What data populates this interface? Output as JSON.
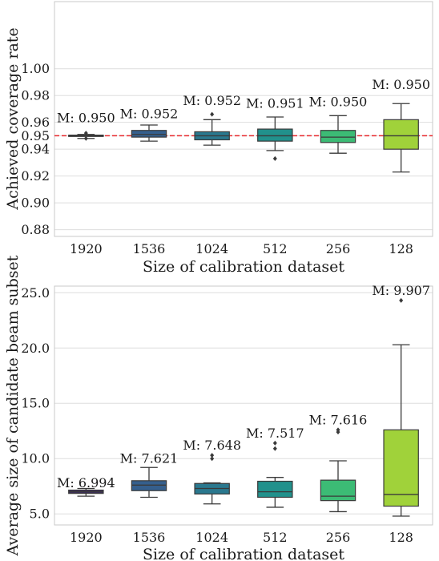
{
  "chart_data": [
    {
      "type": "box",
      "xlabel": "Size of calibration dataset",
      "ylabel": "Achieved coverage rate",
      "ylim": [
        0.875,
        1.05
      ],
      "ytick_labels": [
        "0.88",
        "0.90",
        "0.92",
        "0.94",
        "0.95",
        "0.96",
        "0.98",
        "1.00"
      ],
      "ytick_values": [
        0.88,
        0.9,
        0.92,
        0.94,
        0.95,
        0.96,
        0.98,
        1.0
      ],
      "reference_line": {
        "value": 0.95,
        "color": "#e8262b",
        "style": "dashed"
      },
      "grid": true,
      "categories": [
        "1920",
        "1536",
        "1024",
        "512",
        "256",
        "128"
      ],
      "colors": [
        "#3b2a5c",
        "#355f8d",
        "#2a788e",
        "#21918c",
        "#3cbb75",
        "#a0d23a"
      ],
      "boxes": [
        {
          "whislo": 0.948,
          "q1": 0.9495,
          "med": 0.95,
          "q3": 0.9505,
          "whishi": 0.951,
          "fliers": [
            0.952,
            0.948
          ]
        },
        {
          "whislo": 0.946,
          "q1": 0.949,
          "med": 0.951,
          "q3": 0.954,
          "whishi": 0.958,
          "fliers": []
        },
        {
          "whislo": 0.943,
          "q1": 0.947,
          "med": 0.95,
          "q3": 0.953,
          "whishi": 0.962,
          "fliers": [
            0.966
          ]
        },
        {
          "whislo": 0.939,
          "q1": 0.946,
          "med": 0.95,
          "q3": 0.955,
          "whishi": 0.964,
          "fliers": [
            0.933
          ]
        },
        {
          "whislo": 0.937,
          "q1": 0.945,
          "med": 0.949,
          "q3": 0.954,
          "whishi": 0.965,
          "fliers": []
        },
        {
          "whislo": 0.923,
          "q1": 0.94,
          "med": 0.95,
          "q3": 0.962,
          "whishi": 0.974,
          "fliers": []
        }
      ],
      "annotations": [
        "M: 0.950",
        "M: 0.952",
        "M: 0.952",
        "M: 0.951",
        "M: 0.950",
        "M: 0.950"
      ],
      "annotation_values": [
        0.96,
        0.963,
        0.973,
        0.971,
        0.972,
        0.985
      ]
    },
    {
      "type": "box",
      "xlabel": "Size of calibration dataset",
      "ylabel": "Average size of candidate beam subset",
      "ylim": [
        4.0,
        25.6
      ],
      "ytick_labels": [
        "5.0",
        "10.0",
        "15.0",
        "20.0",
        "25.0"
      ],
      "ytick_values": [
        5,
        10,
        15,
        20,
        25
      ],
      "grid": true,
      "categories": [
        "1920",
        "1536",
        "1024",
        "512",
        "256",
        "128"
      ],
      "colors": [
        "#3b2a5c",
        "#355f8d",
        "#2a788e",
        "#21918c",
        "#3cbb75",
        "#a0d23a"
      ],
      "boxes": [
        {
          "whislo": 6.6,
          "q1": 6.85,
          "med": 7.0,
          "q3": 7.15,
          "whishi": 7.3,
          "fliers": []
        },
        {
          "whislo": 6.5,
          "q1": 7.1,
          "med": 7.6,
          "q3": 8.0,
          "whishi": 9.2,
          "fliers": []
        },
        {
          "whislo": 5.9,
          "q1": 6.8,
          "med": 7.3,
          "q3": 7.75,
          "whishi": 7.8,
          "fliers": [
            10.0,
            10.3
          ]
        },
        {
          "whislo": 5.6,
          "q1": 6.5,
          "med": 7.0,
          "q3": 7.95,
          "whishi": 8.3,
          "fliers": [
            10.9,
            11.4
          ]
        },
        {
          "whislo": 5.2,
          "q1": 6.2,
          "med": 6.6,
          "q3": 8.05,
          "whishi": 9.8,
          "fliers": [
            12.4,
            12.6
          ]
        },
        {
          "whislo": 4.8,
          "q1": 5.7,
          "med": 6.75,
          "q3": 12.6,
          "whishi": 20.3,
          "fliers": [
            24.3
          ]
        }
      ],
      "annotations": [
        "M: 6.994",
        "M: 7.621",
        "M: 7.648",
        "M: 7.517",
        "M: 7.616",
        "M: 9.907"
      ],
      "annotation_values": [
        7.4,
        9.6,
        10.8,
        11.9,
        13.1,
        24.8
      ]
    }
  ]
}
